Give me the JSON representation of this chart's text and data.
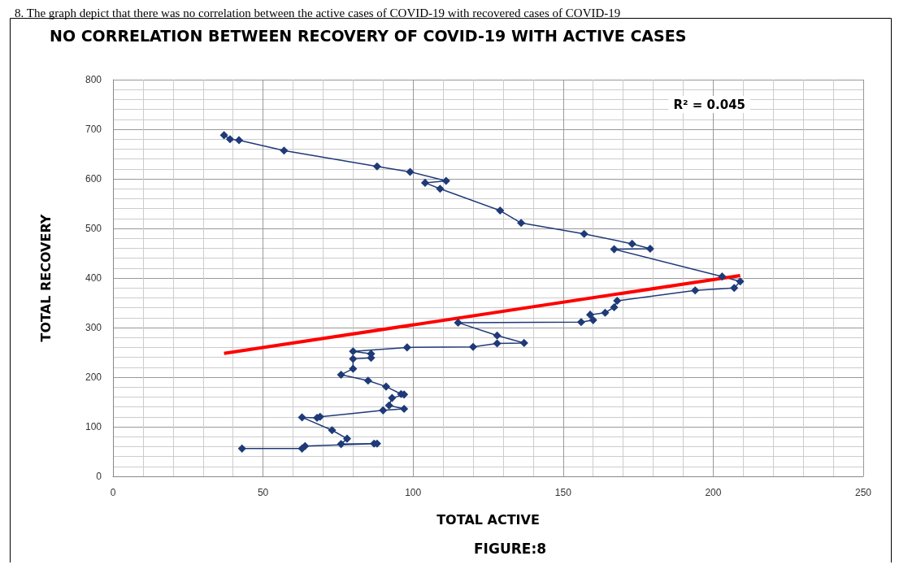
{
  "chart_data": {
    "type": "line",
    "title": "NO CORRELATION BETWEEN RECOVERY OF COVID-19 WITH ACTIVE CASES",
    "xlabel": "TOTAL ACTIVE",
    "ylabel": "TOTAL RECOVERY",
    "annotations": [
      "8. The graph depict that there was no correlation between the active cases of COVID-19 with recovered cases of COVID-19",
      "R² = 0.045",
      "FIGURE:8"
    ],
    "xlim": [
      0,
      250
    ],
    "xticks": [
      0,
      50,
      100,
      150,
      200,
      250
    ],
    "ylim": [
      0,
      800
    ],
    "yticks": [
      0,
      100,
      200,
      300,
      400,
      500,
      600,
      700,
      800
    ],
    "grid": true,
    "marker": "diamond",
    "line_style": "solid",
    "series": [
      {
        "color": "#1f3a78",
        "x": [
          37,
          39,
          42,
          57,
          88,
          99,
          111,
          104,
          109,
          129,
          136,
          157,
          173,
          179,
          167,
          203,
          209,
          207,
          194,
          168,
          167,
          164,
          159,
          160,
          156,
          115,
          128,
          137,
          128,
          120,
          98,
          80,
          86,
          86,
          80,
          80,
          76,
          85,
          91,
          96,
          97,
          93,
          92,
          97,
          90,
          69,
          68,
          63,
          73,
          78,
          76,
          87,
          88,
          64,
          63,
          43
        ],
        "values": [
          688,
          680,
          678,
          657,
          625,
          614,
          596,
          592,
          580,
          536,
          511,
          489,
          469,
          459,
          458,
          403,
          393,
          380,
          375,
          354,
          341,
          330,
          326,
          315,
          311,
          310,
          284,
          269,
          268,
          261,
          260,
          252,
          247,
          239,
          237,
          217,
          205,
          193,
          181,
          166,
          165,
          158,
          143,
          136,
          133,
          120,
          118,
          119,
          93,
          76,
          65,
          66,
          66,
          61,
          56,
          56
        ]
      },
      {
        "type": "line",
        "marker": "none",
        "color": "#ff0000",
        "x": [
          37,
          209
        ],
        "values": [
          248,
          405
        ]
      }
    ]
  }
}
